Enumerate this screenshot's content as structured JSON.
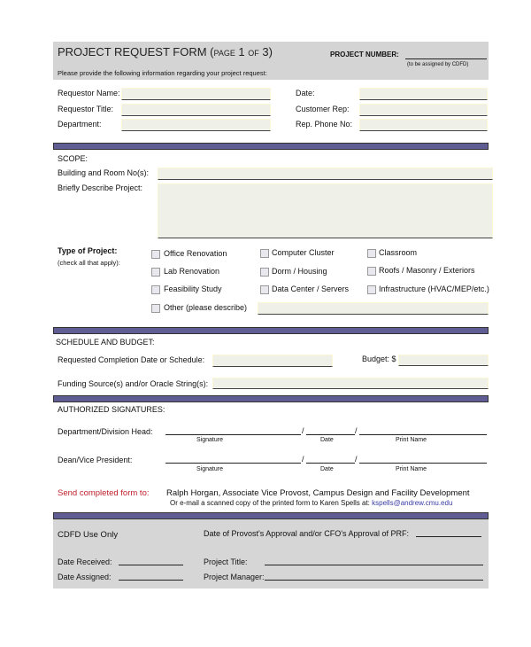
{
  "header": {
    "title": "PROJECT REQUEST FORM (page 1 of 3)",
    "project_number_label": "PROJECT NUMBER:",
    "project_number_note": "(to be assigned by CDFD)",
    "instructions": "Please provide the following information regarding your project request:"
  },
  "requestor": {
    "left": [
      "Requestor Name:",
      "Requestor Title:",
      "Department:"
    ],
    "right": [
      "Date:",
      "Customer Rep:",
      "Rep. Phone No:"
    ]
  },
  "scope": {
    "heading": "SCOPE:",
    "building_label": "Building and Room No(s):",
    "describe_label": "Briefly Describe Project:",
    "type_label": "Type of Project:",
    "type_note": "(check all that apply):",
    "options": [
      [
        "Office Renovation",
        "Lab Renovation",
        "Feasibility Study",
        "Other (please describe)"
      ],
      [
        "Computer Cluster",
        "Dorm / Housing",
        "Data Center / Servers"
      ],
      [
        "Classroom",
        "Roofs / Masonry / Exteriors",
        "Infrastructure (HVAC/MEP/etc.)"
      ]
    ]
  },
  "schedule": {
    "heading": "SCHEDULE AND BUDGET:",
    "completion_label": "Requested Completion Date or Schedule:",
    "budget_label": "Budget: $",
    "funding_label": "Funding Source(s) and/or Oracle String(s):"
  },
  "signatures": {
    "heading": "AUTHORIZED SIGNATURES:",
    "rows": [
      "Department/Division Head:",
      "Dean/Vice President:"
    ],
    "captions": [
      "Signature",
      "Date",
      "Print Name"
    ]
  },
  "send": {
    "label": "Send completed form to:",
    "recipient": "Ralph Horgan, Associate Vice Provost, Campus Design and Facility Development",
    "email_text": "Or e-mail a scanned copy of the printed form to Karen Spells at:",
    "email": "kspells@andrew.cmu.edu"
  },
  "cdfd": {
    "heading": "CDFD Use Only",
    "approval_label": "Date of Provost's Approval and/or CFO's Approval of PRF:",
    "date_received": "Date Received:",
    "date_assigned": "Date Assigned:",
    "project_title": "Project Title:",
    "project_manager": "Project Manager:"
  },
  "colors": {
    "section_bar": "#5f5d94",
    "header_bg": "#d4d4d4",
    "send_label": "#c0202a",
    "email": "#3a3aa8"
  }
}
